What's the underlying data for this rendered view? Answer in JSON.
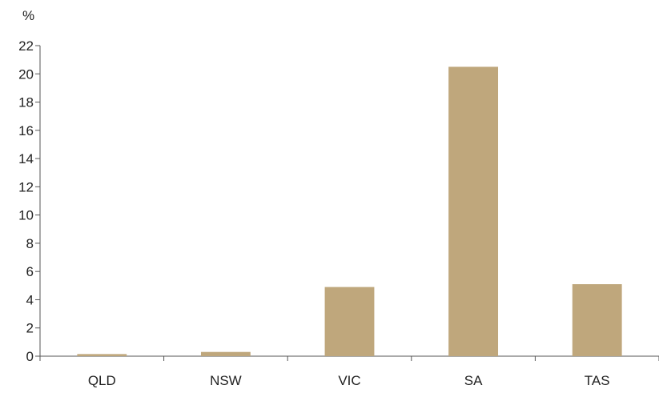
{
  "chart_data": {
    "type": "bar",
    "unit_label": "%",
    "categories": [
      "QLD",
      "NSW",
      "VIC",
      "SA",
      "TAS"
    ],
    "values": [
      0.15,
      0.3,
      4.9,
      20.5,
      5.1
    ],
    "ylim": [
      0,
      22
    ],
    "yticks": [
      0,
      2,
      4,
      6,
      8,
      10,
      12,
      14,
      16,
      18,
      20,
      22
    ],
    "bar_color": "#bfa77c",
    "axis_color": "#555555",
    "grid": false,
    "title": "",
    "xlabel": "",
    "ylabel": ""
  }
}
